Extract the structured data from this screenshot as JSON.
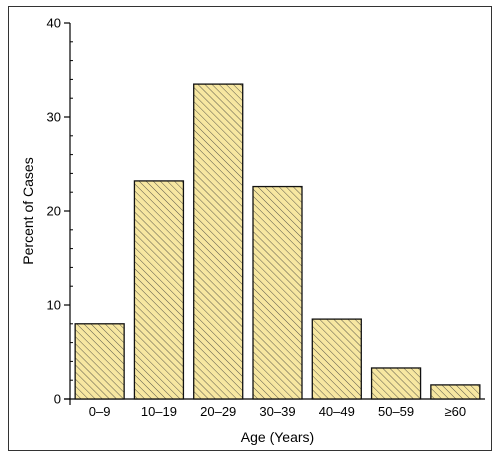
{
  "chart_data": {
    "type": "bar",
    "title": "",
    "xlabel": "Age (Years)",
    "ylabel": "Percent of Cases",
    "categories": [
      "0–9",
      "10–19",
      "20–29",
      "30–39",
      "40–49",
      "50–59",
      "≥60"
    ],
    "values": [
      8,
      23.2,
      33.5,
      22.6,
      8.5,
      3.3,
      1.5
    ],
    "ylim": [
      0,
      40
    ],
    "yticks": [
      0,
      10,
      20,
      30,
      40
    ],
    "grid": false,
    "bar_fill": "#f7e7a1",
    "bar_hatch": "diagonal"
  }
}
